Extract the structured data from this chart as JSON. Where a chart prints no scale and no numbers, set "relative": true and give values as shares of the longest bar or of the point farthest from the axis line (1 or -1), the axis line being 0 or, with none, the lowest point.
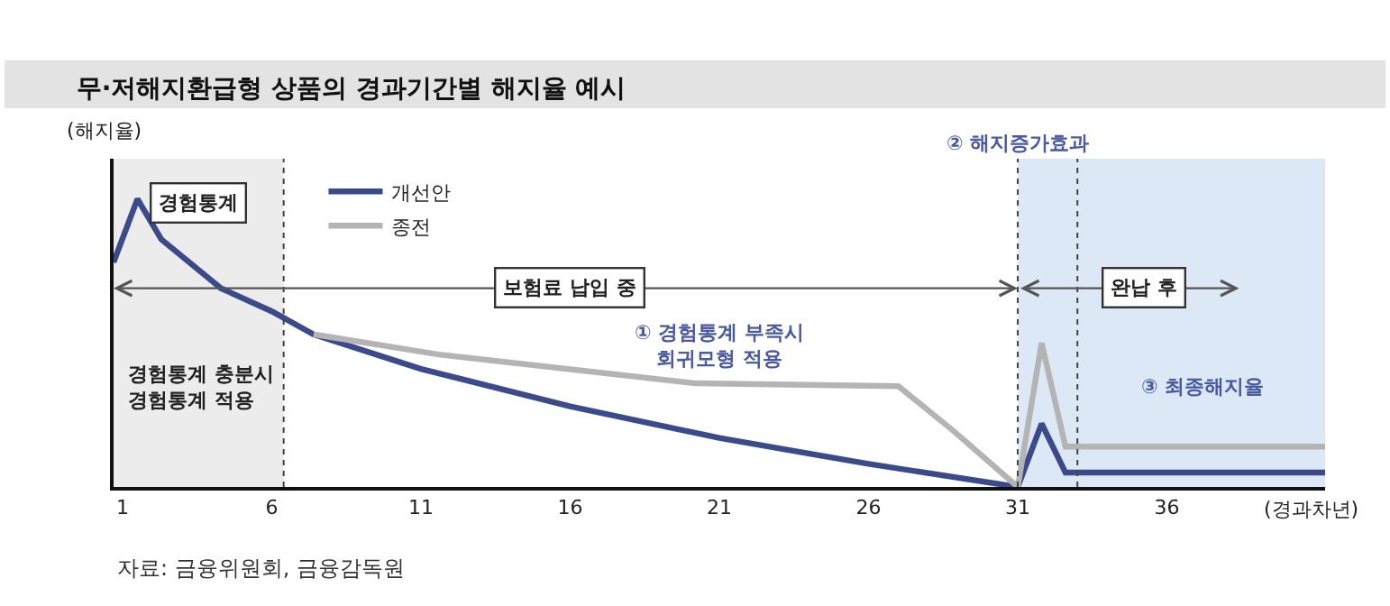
{
  "chart_data": {
    "type": "line",
    "title": "무·저해지환급형 상품의 경과기간별 해지율 예시",
    "xlabel": "(경과차년)",
    "ylabel": "(해지율)",
    "relative": true,
    "xlim": [
      0.7,
      41.3
    ],
    "xticks": [
      1,
      6,
      11,
      16,
      21,
      26,
      31,
      36
    ],
    "grid": false,
    "legend": "top left",
    "marker": "none",
    "line_style": "solid",
    "series": [
      {
        "name": "개선안",
        "color": "#3b4a8a",
        "x": [
          0.7,
          1.5,
          2.3,
          4.3,
          6,
          7.4,
          11,
          16,
          21,
          26,
          31,
          31.8,
          32.6,
          41.3
        ],
        "values": [
          0.78,
          1,
          0.86,
          0.69,
          0.61,
          0.53,
          0.41,
          0.28,
          0.17,
          0.08,
          0,
          0.22,
          0.05,
          0.05
        ]
      },
      {
        "name": "종전",
        "color": "#b4b4b4",
        "x": [
          7.4,
          11.6,
          20.2,
          27,
          28.9,
          31,
          31.8,
          32.6,
          41.3
        ],
        "values": [
          0.53,
          0.46,
          0.36,
          0.35,
          0.19,
          0,
          0.5,
          0.14,
          0.14
        ]
      }
    ],
    "bands": [
      {
        "axis": "x",
        "from": 0.7,
        "to": 6.4,
        "label": "경험통계",
        "color": "#ececec"
      },
      {
        "axis": "x",
        "from": 31,
        "to": 41.3,
        "color": "#dce8f5"
      }
    ],
    "ref_lines": [
      {
        "axis": "x",
        "value": 6.4,
        "line_style": "dotted"
      },
      {
        "axis": "x",
        "value": 31,
        "label": "② 해지증가효과",
        "line_style": "dotted"
      },
      {
        "axis": "x",
        "value": 33,
        "line_style": "dotted"
      }
    ],
    "annotations": [
      "보험료 납입 중",
      "완납 후",
      "① 경험통계 부족시\n회귀모형 적용",
      "③ 최종해지율",
      "경험통계 충분시\n경험통계 적용",
      "자료: 금융위원회, 금융감독원"
    ]
  }
}
